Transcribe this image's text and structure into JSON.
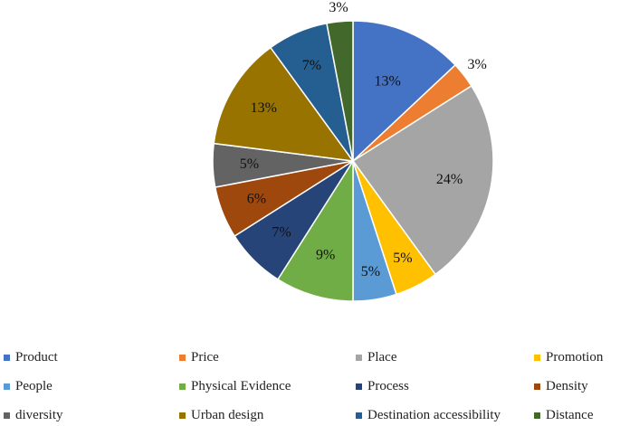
{
  "chart_data": {
    "type": "pie",
    "title": "",
    "legend_position": "bottom",
    "slices": [
      {
        "label": "Product",
        "value": 13,
        "value_label": "13%",
        "color": "#4472C4"
      },
      {
        "label": "Price",
        "value": 3,
        "value_label": "3%",
        "color": "#ED7D31"
      },
      {
        "label": "Place",
        "value": 24,
        "value_label": "24%",
        "color": "#A5A5A5"
      },
      {
        "label": "Promotion",
        "value": 5,
        "value_label": "5%",
        "color": "#FFC000"
      },
      {
        "label": "People",
        "value": 5,
        "value_label": "5%",
        "color": "#5B9BD5"
      },
      {
        "label": "Physical Evidence",
        "value": 9,
        "value_label": "9%",
        "color": "#70AD47"
      },
      {
        "label": "Process",
        "value": 7,
        "value_label": "7%",
        "color": "#264478"
      },
      {
        "label": "Density",
        "value": 6,
        "value_label": "6%",
        "color": "#9E480E"
      },
      {
        "label": "diversity",
        "value": 5,
        "value_label": "5%",
        "color": "#636363"
      },
      {
        "label": "Urban design",
        "value": 13,
        "value_label": "13%",
        "color": "#997300"
      },
      {
        "label": "Destination accessibility",
        "value": 7,
        "value_label": "7%",
        "color": "#255E91"
      },
      {
        "label": "Distance",
        "value": 3,
        "value_label": "3%",
        "color": "#43682B"
      }
    ]
  }
}
